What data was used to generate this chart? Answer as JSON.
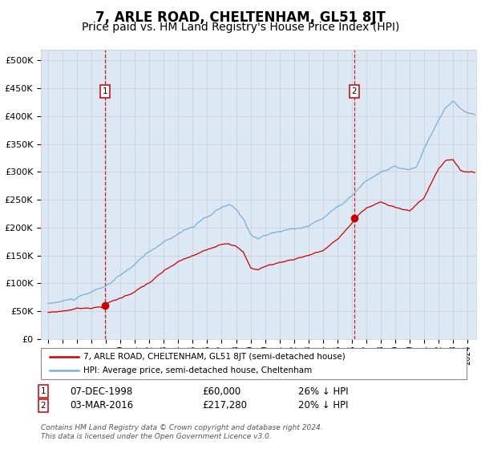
{
  "title": "7, ARLE ROAD, CHELTENHAM, GL51 8JT",
  "subtitle": "Price paid vs. HM Land Registry's House Price Index (HPI)",
  "title_fontsize": 12,
  "subtitle_fontsize": 10,
  "bg_color": "#dce9f5",
  "plot_bg": "#ffffff",
  "grid_color": "#cccccc",
  "red_line_color": "#cc0000",
  "blue_line_color": "#7bafd4",
  "sale1_date_x": 1998.92,
  "sale1_price": 60000,
  "sale1_label": "07-DEC-1998",
  "sale1_price_label": "£60,000",
  "sale1_hpi_label": "26% ↓ HPI",
  "sale2_date_x": 2016.17,
  "sale2_price": 217280,
  "sale2_label": "03-MAR-2016",
  "sale2_price_label": "£217,280",
  "sale2_hpi_label": "20% ↓ HPI",
  "yticks": [
    0,
    50000,
    100000,
    150000,
    200000,
    250000,
    300000,
    350000,
    400000,
    450000,
    500000
  ],
  "ylim": [
    0,
    520000
  ],
  "xlim_start": 1994.5,
  "xlim_end": 2024.6,
  "legend_red_label": "7, ARLE ROAD, CHELTENHAM, GL51 8JT (semi-detached house)",
  "legend_blue_label": "HPI: Average price, semi-detached house, Cheltenham",
  "footnote": "Contains HM Land Registry data © Crown copyright and database right 2024.\nThis data is licensed under the Open Government Licence v3.0."
}
